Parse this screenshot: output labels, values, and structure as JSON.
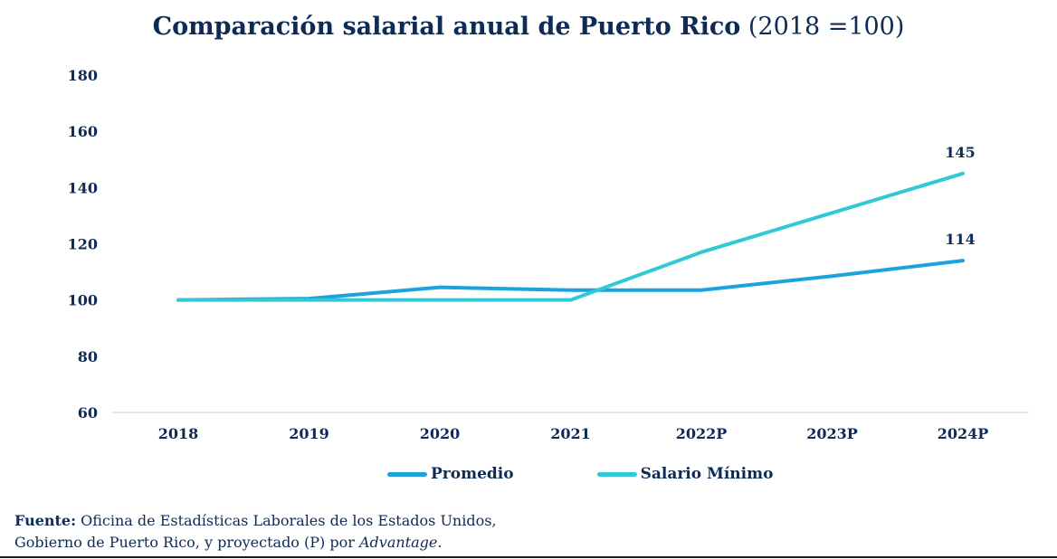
{
  "chart_data": {
    "type": "line",
    "title_bold": "Comparación salarial anual de Puerto Rico",
    "title_rest": "(2018 =100)",
    "categories": [
      "2018",
      "2019",
      "2020",
      "2021",
      "2022P",
      "2023P",
      "2024P"
    ],
    "series": [
      {
        "name": "Promedio",
        "color": "#1ba3de",
        "values": [
          100,
          100.5,
          104.5,
          103.5,
          103.5,
          108.5,
          114
        ]
      },
      {
        "name": "Salario Mínimo",
        "color": "#32c8d8",
        "values": [
          100,
          100,
          100,
          100,
          117,
          131,
          145
        ]
      }
    ],
    "data_labels": [
      {
        "series": "Salario Mínimo",
        "category": "2024P",
        "text": "145"
      },
      {
        "series": "Promedio",
        "category": "2024P",
        "text": "114"
      }
    ],
    "yticks": [
      60,
      80,
      100,
      120,
      140,
      160,
      180
    ],
    "ylim": [
      60,
      180
    ],
    "grid": false,
    "legend_position": "bottom",
    "xlabel": "",
    "ylabel": ""
  },
  "source": {
    "label": "Fuente:",
    "line1": "Oficina de Estadísticas Laborales de los Estados Unidos,",
    "line2": "Gobierno de Puerto Rico, y proyectado (P)  por",
    "italic": "Advantage",
    "end": "."
  }
}
